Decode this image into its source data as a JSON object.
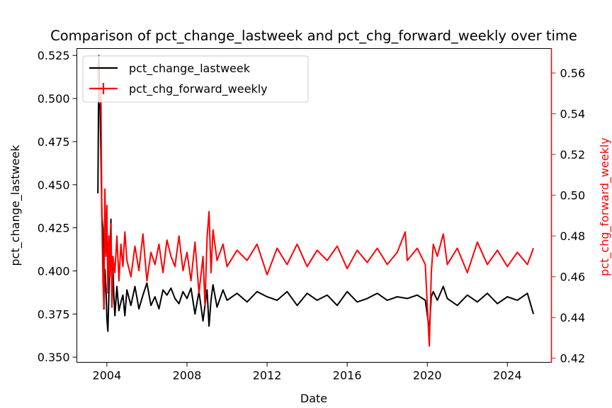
{
  "chart_data": {
    "type": "line",
    "title": "Comparison of pct_change_lastweek and pct_chg_forward_weekly over time",
    "xlabel": "Date",
    "ylabel_left": "pct_change_lastweek",
    "ylabel_right": "pct_chg_forward_weekly",
    "xlim": [
      2002.5,
      2026.2
    ],
    "ylim_left": [
      0.347,
      0.529
    ],
    "ylim_right": [
      0.418,
      0.572
    ],
    "x_ticks": [
      2004,
      2008,
      2012,
      2016,
      2020,
      2024
    ],
    "y_ticks_left": [
      0.35,
      0.375,
      0.4,
      0.425,
      0.45,
      0.475,
      0.5,
      0.525
    ],
    "y_ticks_right": [
      0.42,
      0.44,
      0.46,
      0.48,
      0.5,
      0.52,
      0.54,
      0.56
    ],
    "legend": {
      "position": "top-left"
    },
    "series": [
      {
        "name": "pct_change_lastweek",
        "axis": "left",
        "color": "#000000",
        "x": [
          2003.55,
          2003.6,
          2003.65,
          2003.7,
          2003.75,
          2003.8,
          2003.85,
          2003.9,
          2003.95,
          2004.0,
          2004.05,
          2004.1,
          2004.15,
          2004.2,
          2004.25,
          2004.3,
          2004.35,
          2004.4,
          2004.5,
          2004.6,
          2004.7,
          2004.8,
          2004.9,
          2005.0,
          2005.2,
          2005.4,
          2005.6,
          2005.8,
          2006.0,
          2006.2,
          2006.4,
          2006.6,
          2006.8,
          2007.0,
          2007.2,
          2007.4,
          2007.6,
          2007.8,
          2008.0,
          2008.2,
          2008.4,
          2008.6,
          2008.8,
          2008.9,
          2009.0,
          2009.1,
          2009.2,
          2009.3,
          2009.5,
          2009.8,
          2010.0,
          2010.5,
          2011.0,
          2011.5,
          2012.0,
          2012.5,
          2013.0,
          2013.5,
          2014.0,
          2014.5,
          2015.0,
          2015.5,
          2016.0,
          2016.5,
          2017.0,
          2017.5,
          2018.0,
          2018.5,
          2019.0,
          2019.5,
          2019.9,
          2020.1,
          2020.2,
          2020.3,
          2020.5,
          2020.8,
          2021.0,
          2021.5,
          2022.0,
          2022.5,
          2023.0,
          2023.5,
          2024.0,
          2024.5,
          2025.0,
          2025.3
        ],
        "values": [
          0.445,
          0.525,
          0.499,
          0.47,
          0.432,
          0.425,
          0.378,
          0.401,
          0.391,
          0.372,
          0.365,
          0.386,
          0.408,
          0.43,
          0.38,
          0.402,
          0.385,
          0.374,
          0.391,
          0.377,
          0.382,
          0.386,
          0.374,
          0.389,
          0.38,
          0.391,
          0.378,
          0.386,
          0.393,
          0.38,
          0.385,
          0.378,
          0.389,
          0.386,
          0.39,
          0.384,
          0.381,
          0.388,
          0.384,
          0.39,
          0.375,
          0.388,
          0.371,
          0.38,
          0.389,
          0.368,
          0.383,
          0.392,
          0.379,
          0.389,
          0.383,
          0.387,
          0.382,
          0.388,
          0.385,
          0.383,
          0.388,
          0.38,
          0.387,
          0.383,
          0.386,
          0.38,
          0.388,
          0.382,
          0.384,
          0.387,
          0.383,
          0.385,
          0.384,
          0.386,
          0.383,
          0.366,
          0.385,
          0.388,
          0.383,
          0.391,
          0.384,
          0.38,
          0.386,
          0.382,
          0.387,
          0.381,
          0.385,
          0.383,
          0.387,
          0.375
        ]
      },
      {
        "name": "pct_chg_forward_weekly",
        "axis": "right",
        "color": "#ff0000",
        "x": [
          2003.55,
          2003.6,
          2003.65,
          2003.7,
          2003.75,
          2003.8,
          2003.85,
          2003.9,
          2003.95,
          2004.0,
          2004.05,
          2004.1,
          2004.15,
          2004.2,
          2004.25,
          2004.3,
          2004.4,
          2004.5,
          2004.6,
          2004.7,
          2004.8,
          2004.9,
          2005.0,
          2005.2,
          2005.4,
          2005.6,
          2005.8,
          2006.0,
          2006.2,
          2006.4,
          2006.6,
          2006.8,
          2007.0,
          2007.2,
          2007.4,
          2007.6,
          2007.8,
          2008.0,
          2008.2,
          2008.4,
          2008.6,
          2008.8,
          2008.9,
          2009.0,
          2009.1,
          2009.2,
          2009.3,
          2009.5,
          2009.8,
          2010.0,
          2010.5,
          2011.0,
          2011.5,
          2012.0,
          2012.5,
          2013.0,
          2013.5,
          2014.0,
          2014.5,
          2015.0,
          2015.5,
          2016.0,
          2016.5,
          2017.0,
          2017.5,
          2018.0,
          2018.5,
          2018.9,
          2019.0,
          2019.5,
          2019.9,
          2020.1,
          2020.2,
          2020.3,
          2020.5,
          2020.8,
          2021.0,
          2021.5,
          2022.0,
          2022.5,
          2023.0,
          2023.5,
          2024.0,
          2024.5,
          2025.0,
          2025.3
        ],
        "values": [
          0.565,
          0.548,
          0.545,
          0.553,
          0.49,
          0.458,
          0.445,
          0.503,
          0.47,
          0.495,
          0.452,
          0.48,
          0.46,
          0.486,
          0.445,
          0.47,
          0.462,
          0.48,
          0.458,
          0.476,
          0.465,
          0.482,
          0.468,
          0.46,
          0.475,
          0.463,
          0.481,
          0.458,
          0.472,
          0.466,
          0.476,
          0.462,
          0.478,
          0.47,
          0.465,
          0.48,
          0.463,
          0.472,
          0.458,
          0.477,
          0.452,
          0.47,
          0.446,
          0.479,
          0.492,
          0.462,
          0.483,
          0.468,
          0.476,
          0.465,
          0.473,
          0.468,
          0.476,
          0.461,
          0.474,
          0.466,
          0.476,
          0.465,
          0.473,
          0.468,
          0.475,
          0.464,
          0.473,
          0.467,
          0.474,
          0.466,
          0.472,
          0.482,
          0.468,
          0.474,
          0.466,
          0.426,
          0.462,
          0.476,
          0.47,
          0.481,
          0.466,
          0.474,
          0.462,
          0.477,
          0.466,
          0.473,
          0.465,
          0.472,
          0.466,
          0.474
        ]
      }
    ]
  }
}
